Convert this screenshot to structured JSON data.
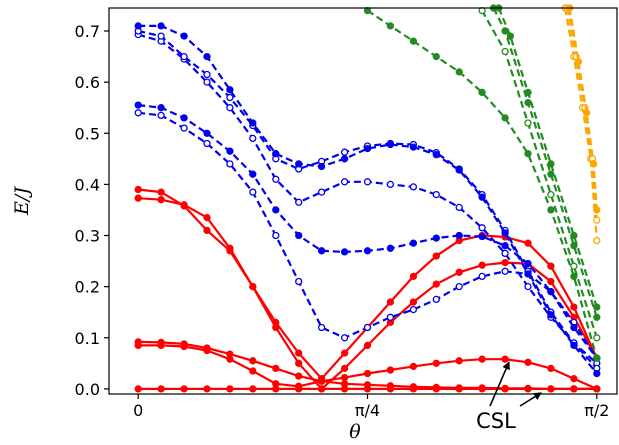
{
  "chart_data": {
    "type": "line",
    "xlabel": "θ",
    "ylabel": "E/J",
    "xlim": [
      -0.1,
      1.64
    ],
    "ylim": [
      -0.01,
      0.745
    ],
    "x_ticks": [
      {
        "value": 0,
        "label": "0"
      },
      {
        "value": 0.7854,
        "label": "π/4"
      },
      {
        "value": 1.5708,
        "label": "π/2"
      }
    ],
    "y_ticks": [
      {
        "value": 0.0,
        "label": "0.0"
      },
      {
        "value": 0.1,
        "label": "0.1"
      },
      {
        "value": 0.2,
        "label": "0.2"
      },
      {
        "value": 0.3,
        "label": "0.3"
      },
      {
        "value": 0.4,
        "label": "0.4"
      },
      {
        "value": 0.5,
        "label": "0.5"
      },
      {
        "value": 0.6,
        "label": "0.6"
      },
      {
        "value": 0.7,
        "label": "0.7"
      }
    ],
    "grid": false,
    "annotations": [
      {
        "text": "CSL",
        "arrows_to": [
          [
            1.27,
            0.06
          ],
          [
            1.38,
            0.0
          ]
        ]
      }
    ],
    "series": [
      {
        "color": "#ff0000",
        "marker": "filled",
        "dashed": false,
        "x": [
          0,
          0.0785,
          0.1571,
          0.2356,
          0.3142,
          0.3927,
          0.4712,
          0.5498,
          0.6283,
          0.7069,
          0.7854,
          0.864,
          0.9425,
          1.021,
          1.0996,
          1.1781,
          1.2566,
          1.3352,
          1.4137,
          1.4923,
          1.5708
        ],
        "y": [
          0,
          0,
          0,
          0,
          0,
          0,
          0,
          0,
          0,
          0,
          0,
          0,
          0,
          0,
          0,
          0,
          0,
          0,
          0,
          0,
          0
        ]
      },
      {
        "color": "#ff0000",
        "marker": "filled",
        "dashed": false,
        "x": [
          0,
          0.0785,
          0.1571,
          0.2356,
          0.3142,
          0.3927,
          0.4712,
          0.5498,
          0.6283,
          0.7069,
          0.7854,
          0.864,
          0.9425,
          1.021,
          1.0996,
          1.1781,
          1.2566,
          1.3352,
          1.4137,
          1.4923,
          1.5708
        ],
        "y": [
          0.085,
          0.085,
          0.083,
          0.075,
          0.058,
          0.035,
          0.01,
          0.005,
          0.015,
          0.022,
          0.03,
          0.037,
          0.044,
          0.05,
          0.055,
          0.058,
          0.058,
          0.052,
          0.04,
          0.02,
          0
        ]
      },
      {
        "color": "#ff0000",
        "marker": "filled",
        "dashed": false,
        "x": [
          0,
          0.0785,
          0.1571,
          0.2356,
          0.3142,
          0.3927,
          0.4712,
          0.5498,
          0.6283,
          0.7069,
          0.7854,
          0.864,
          0.9425,
          1.021,
          1.0996,
          1.1781,
          1.2566,
          1.3352,
          1.4137,
          1.4923,
          1.5708
        ],
        "y": [
          0.092,
          0.091,
          0.088,
          0.08,
          0.068,
          0.055,
          0.04,
          0.025,
          0.015,
          0.01,
          0.008,
          0.006,
          0.004,
          0.003,
          0.002,
          0.002,
          0.001,
          0.001,
          0,
          0,
          0
        ]
      },
      {
        "color": "#ff0000",
        "marker": "filled",
        "dashed": false,
        "x": [
          0,
          0.0785,
          0.1571,
          0.2356,
          0.3142,
          0.3927,
          0.4712,
          0.5498,
          0.6283,
          0.7069,
          0.7854,
          0.864,
          0.9425,
          1.021,
          1.0996,
          1.1781,
          1.2566,
          1.3352,
          1.4137,
          1.4923,
          1.5708
        ],
        "y": [
          0.373,
          0.37,
          0.36,
          0.335,
          0.275,
          0.2,
          0.12,
          0.05,
          0.0,
          0.04,
          0.085,
          0.13,
          0.17,
          0.205,
          0.228,
          0.242,
          0.247,
          0.245,
          0.21,
          0.14,
          0.06
        ]
      },
      {
        "color": "#ff0000",
        "marker": "filled",
        "dashed": false,
        "x": [
          0,
          0.0785,
          0.1571,
          0.2356,
          0.3142,
          0.3927,
          0.4712,
          0.5498,
          0.6283,
          0.7069,
          0.7854,
          0.864,
          0.9425,
          1.021,
          1.0996,
          1.1781,
          1.2566,
          1.3352,
          1.4137,
          1.4923,
          1.5708
        ],
        "y": [
          0.39,
          0.385,
          0.358,
          0.31,
          0.27,
          0.2,
          0.13,
          0.07,
          0.02,
          0.07,
          0.12,
          0.17,
          0.22,
          0.26,
          0.29,
          0.3,
          0.297,
          0.285,
          0.24,
          0.16,
          0.06
        ]
      },
      {
        "color": "#0000ee",
        "marker": "open",
        "dashed": true,
        "x": [
          0,
          0.0785,
          0.1571,
          0.2356,
          0.3142,
          0.3927,
          0.4712,
          0.5498,
          0.6283,
          0.7069,
          0.7854,
          0.864,
          0.9425,
          1.021,
          1.0996,
          1.1781,
          1.2566,
          1.3352,
          1.4137,
          1.4923,
          1.5708
        ],
        "y": [
          0.54,
          0.535,
          0.51,
          0.48,
          0.44,
          0.385,
          0.3,
          0.21,
          0.12,
          0.1,
          0.12,
          0.14,
          0.155,
          0.175,
          0.2,
          0.22,
          0.23,
          0.225,
          0.19,
          0.13,
          0.06
        ]
      },
      {
        "color": "#0000ee",
        "marker": "filled",
        "dashed": true,
        "x": [
          0,
          0.0785,
          0.1571,
          0.2356,
          0.3142,
          0.3927,
          0.4712,
          0.5498,
          0.6283,
          0.7069,
          0.7854,
          0.864,
          0.9425,
          1.021,
          1.0996,
          1.1781,
          1.2566,
          1.3352,
          1.4137,
          1.4923,
          1.5708
        ],
        "y": [
          0.555,
          0.55,
          0.53,
          0.5,
          0.465,
          0.42,
          0.35,
          0.3,
          0.27,
          0.268,
          0.27,
          0.275,
          0.285,
          0.295,
          0.3,
          0.298,
          0.28,
          0.245,
          0.19,
          0.12,
          0.06
        ]
      },
      {
        "color": "#0000ee",
        "marker": "open",
        "dashed": true,
        "x": [
          0,
          0.0785,
          0.1571,
          0.2356,
          0.3142,
          0.3927,
          0.4712,
          0.5498,
          0.6283,
          0.7069,
          0.7854,
          0.864,
          0.9425,
          1.021,
          1.0996,
          1.1781,
          1.2566,
          1.3352,
          1.4137,
          1.4923,
          1.5708
        ],
        "y": [
          0.693,
          0.68,
          0.645,
          0.6,
          0.55,
          0.49,
          0.41,
          0.365,
          0.385,
          0.405,
          0.405,
          0.4,
          0.395,
          0.38,
          0.355,
          0.315,
          0.265,
          0.2,
          0.14,
          0.09,
          0.05
        ]
      },
      {
        "color": "#0000ee",
        "marker": "open",
        "dashed": true,
        "x": [
          0,
          0.0785,
          0.1571,
          0.2356,
          0.3142,
          0.3927,
          0.4712,
          0.5498,
          0.6283,
          0.7069,
          0.7854,
          0.864,
          0.9425,
          1.021,
          1.0996,
          1.1781,
          1.2566,
          1.3352,
          1.4137,
          1.4923,
          1.5708
        ],
        "y": [
          0.7,
          0.69,
          0.65,
          0.615,
          0.57,
          0.515,
          0.45,
          0.43,
          0.445,
          0.463,
          0.475,
          0.48,
          0.478,
          0.462,
          0.43,
          0.38,
          0.31,
          0.23,
          0.15,
          0.09,
          0.04
        ]
      },
      {
        "color": "#0000ee",
        "marker": "filled",
        "dashed": true,
        "x": [
          0,
          0.0785,
          0.1571,
          0.2356,
          0.3142,
          0.3927,
          0.4712,
          0.5498,
          0.6283,
          0.7069,
          0.7854,
          0.864,
          0.9425,
          1.021,
          1.0996,
          1.1781,
          1.2566,
          1.3352,
          1.4137,
          1.4923,
          1.5708
        ],
        "y": [
          0.71,
          0.71,
          0.69,
          0.65,
          0.585,
          0.52,
          0.46,
          0.44,
          0.435,
          0.45,
          0.47,
          0.478,
          0.473,
          0.458,
          0.428,
          0.375,
          0.305,
          0.225,
          0.145,
          0.085,
          0.03
        ]
      },
      {
        "color": "#228b22",
        "marker": "filled",
        "dashed": true,
        "x": [
          0.7854,
          0.864,
          0.9425,
          1.021,
          1.0996,
          1.1781,
          1.2566,
          1.3352,
          1.4137,
          1.4923,
          1.5708
        ],
        "y": [
          0.74,
          0.71,
          0.68,
          0.65,
          0.62,
          0.58,
          0.53,
          0.46,
          0.35,
          0.22,
          0.06
        ]
      },
      {
        "color": "#228b22",
        "marker": "open",
        "dashed": true,
        "x": [
          1.1781,
          1.2566,
          1.3352,
          1.4137,
          1.4923,
          1.5708
        ],
        "y": [
          0.74,
          0.66,
          0.52,
          0.38,
          0.24,
          0.1
        ]
      },
      {
        "color": "#228b22",
        "marker": "filled",
        "dashed": true,
        "x": [
          1.2175,
          1.2566,
          1.3352,
          1.4137,
          1.4923,
          1.5708
        ],
        "y": [
          0.745,
          0.7,
          0.56,
          0.42,
          0.28,
          0.14
        ]
      },
      {
        "color": "#228b22",
        "marker": "filled",
        "dashed": true,
        "x": [
          1.235,
          1.275,
          1.3352,
          1.4137,
          1.4923,
          1.5708
        ],
        "y": [
          0.745,
          0.69,
          0.58,
          0.44,
          0.3,
          0.16
        ]
      },
      {
        "color": "#ffa500",
        "marker": "open",
        "dashed": true,
        "x": [
          1.462,
          1.4923,
          1.522,
          1.55,
          1.5708
        ],
        "y": [
          0.745,
          0.65,
          0.55,
          0.45,
          0.29
        ]
      },
      {
        "color": "#ffa500",
        "marker": "open",
        "dashed": true,
        "x": [
          1.47,
          1.5,
          1.53,
          1.556,
          1.5708
        ],
        "y": [
          0.745,
          0.65,
          0.55,
          0.45,
          0.33
        ]
      },
      {
        "color": "#ffa500",
        "marker": "filled",
        "dashed": true,
        "x": [
          1.478,
          1.508,
          1.536,
          1.56,
          1.5708
        ],
        "y": [
          0.745,
          0.64,
          0.54,
          0.44,
          0.35
        ]
      }
    ]
  }
}
